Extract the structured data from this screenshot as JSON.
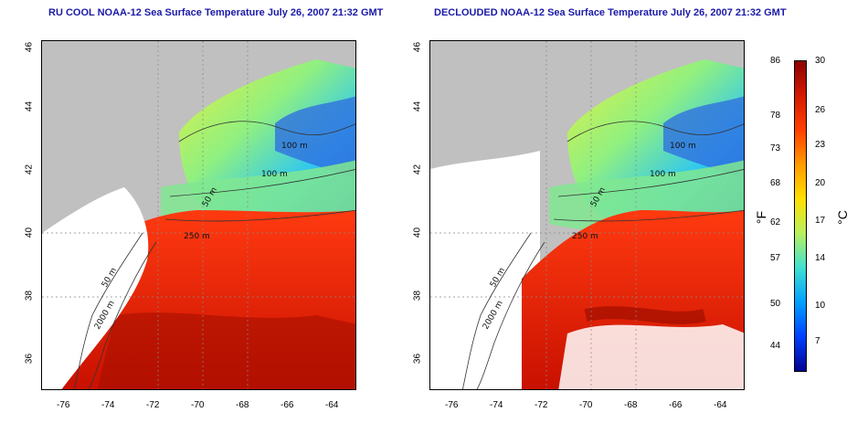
{
  "titles": {
    "left": "RU COOL NOAA-12 Sea Surface Temperature July 26, 2007 21:32 GMT",
    "right": "DECLOUDED NOAA-12 Sea Surface Temperature July 26, 2007 21:32 GMT"
  },
  "axes": {
    "lon_ticks": [
      "-76",
      "-74",
      "-72",
      "-70",
      "-68",
      "-66",
      "-64"
    ],
    "lat_ticks": [
      "46",
      "44",
      "42",
      "40",
      "38",
      "36"
    ]
  },
  "contours": {
    "label_100m_a": "100 m",
    "label_100m_b": "100 m",
    "label_50m": "50 m",
    "label_250m": "250 m",
    "label_50m_south": "50 m",
    "label_2000m": "2000 m"
  },
  "colorbar": {
    "fahrenheit_ticks": [
      "86",
      "78",
      "73",
      "68",
      "62",
      "57",
      "50",
      "44"
    ],
    "celsius_ticks": [
      "30",
      "26",
      "23",
      "20",
      "17",
      "14",
      "10",
      "7"
    ],
    "fahrenheit_unit": "°F",
    "celsius_unit": "°C",
    "colors": [
      "#8b0000",
      "#d41a00",
      "#ff4000",
      "#ff9a00",
      "#ffe000",
      "#b8f060",
      "#40e0d0",
      "#00a0ff",
      "#0040ff",
      "#000090"
    ]
  }
}
